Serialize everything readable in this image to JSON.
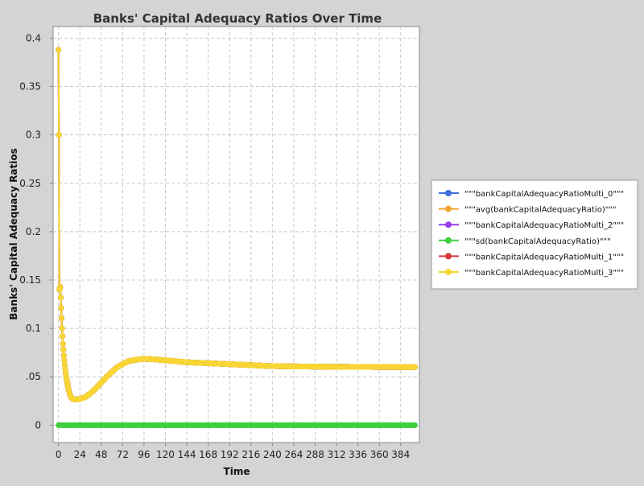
{
  "chart_data": {
    "type": "line",
    "title": "Banks' Capital Adequacy Ratios Over Time",
    "xlabel": "Time",
    "ylabel": "Banks' Capital Adequacy Ratios",
    "xlim": [
      -6,
      405
    ],
    "ylim": [
      -0.018,
      0.412
    ],
    "x_ticks": [
      0,
      24,
      48,
      72,
      96,
      120,
      144,
      168,
      192,
      216,
      240,
      264,
      288,
      312,
      336,
      360,
      384
    ],
    "y_ticks": [
      {
        "value": 0,
        "label": "0"
      },
      {
        "value": 0.05,
        "label": ".05"
      },
      {
        "value": 0.1,
        "label": "0.1"
      },
      {
        "value": 0.15,
        "label": "0.15"
      },
      {
        "value": 0.2,
        "label": "0.2"
      },
      {
        "value": 0.25,
        "label": "0.25"
      },
      {
        "value": 0.3,
        "label": "0.3"
      },
      {
        "value": 0.35,
        "label": "0.35"
      },
      {
        "value": 0.4,
        "label": "0.4"
      }
    ],
    "grid": true,
    "legend_position": "right",
    "series": [
      {
        "name": "\"\"\"bankCapitalAdequacyRatioMulti_0\"\"\"",
        "color": "#3d6fe0",
        "shape": "flat",
        "values": [
          [
            0,
            0.388
          ],
          [
            0.5,
            0.3
          ],
          [
            1,
            0.14
          ],
          [
            2,
            0.143
          ],
          [
            3,
            0.121
          ],
          [
            4,
            0.1
          ],
          [
            5,
            0.084
          ],
          [
            6,
            0.072
          ],
          [
            7,
            0.062
          ],
          [
            8,
            0.054
          ],
          [
            9,
            0.048
          ],
          [
            10,
            0.043
          ],
          [
            11,
            0.038
          ],
          [
            12,
            0.034
          ],
          [
            13,
            0.031
          ],
          [
            14,
            0.029
          ],
          [
            16,
            0.027
          ],
          [
            20,
            0.0265
          ],
          [
            24,
            0.027
          ],
          [
            30,
            0.029
          ],
          [
            36,
            0.033
          ],
          [
            42,
            0.038
          ],
          [
            48,
            0.044
          ],
          [
            54,
            0.05
          ],
          [
            60,
            0.055
          ],
          [
            66,
            0.06
          ],
          [
            72,
            0.063
          ],
          [
            78,
            0.066
          ],
          [
            84,
            0.067
          ],
          [
            90,
            0.068
          ],
          [
            96,
            0.0685
          ],
          [
            108,
            0.068
          ],
          [
            120,
            0.067
          ],
          [
            144,
            0.065
          ],
          [
            168,
            0.064
          ],
          [
            192,
            0.063
          ],
          [
            216,
            0.062
          ],
          [
            240,
            0.061
          ],
          [
            264,
            0.0607
          ],
          [
            288,
            0.0605
          ],
          [
            312,
            0.0603
          ],
          [
            336,
            0.0602
          ],
          [
            360,
            0.0601
          ],
          [
            384,
            0.06
          ],
          [
            400,
            0.06
          ]
        ]
      },
      {
        "name": "\"\"\"avg(bankCapitalAdequacyRatio)\"\"\"",
        "color": "#f2a531",
        "shape": "flat",
        "values": [
          [
            0,
            0.388
          ],
          [
            0.5,
            0.3
          ],
          [
            1,
            0.14
          ],
          [
            2,
            0.143
          ],
          [
            3,
            0.121
          ],
          [
            4,
            0.1
          ],
          [
            5,
            0.084
          ],
          [
            6,
            0.072
          ],
          [
            7,
            0.062
          ],
          [
            8,
            0.054
          ],
          [
            9,
            0.048
          ],
          [
            10,
            0.043
          ],
          [
            11,
            0.038
          ],
          [
            12,
            0.034
          ],
          [
            13,
            0.031
          ],
          [
            14,
            0.029
          ],
          [
            16,
            0.027
          ],
          [
            20,
            0.0265
          ],
          [
            24,
            0.027
          ],
          [
            30,
            0.029
          ],
          [
            36,
            0.033
          ],
          [
            42,
            0.038
          ],
          [
            48,
            0.044
          ],
          [
            54,
            0.05
          ],
          [
            60,
            0.055
          ],
          [
            66,
            0.06
          ],
          [
            72,
            0.063
          ],
          [
            78,
            0.066
          ],
          [
            84,
            0.067
          ],
          [
            90,
            0.068
          ],
          [
            96,
            0.0685
          ],
          [
            108,
            0.068
          ],
          [
            120,
            0.067
          ],
          [
            144,
            0.065
          ],
          [
            168,
            0.064
          ],
          [
            192,
            0.063
          ],
          [
            216,
            0.062
          ],
          [
            240,
            0.061
          ],
          [
            264,
            0.0607
          ],
          [
            288,
            0.0605
          ],
          [
            312,
            0.0603
          ],
          [
            336,
            0.0602
          ],
          [
            360,
            0.0601
          ],
          [
            384,
            0.06
          ],
          [
            400,
            0.06
          ]
        ]
      },
      {
        "name": "\"\"\"bankCapitalAdequacyRatioMulti_2\"\"\"",
        "color": "#9a3fe8",
        "shape": "flat",
        "values": [
          [
            0,
            0.388
          ],
          [
            0.5,
            0.3
          ],
          [
            1,
            0.14
          ],
          [
            2,
            0.143
          ],
          [
            3,
            0.121
          ],
          [
            4,
            0.1
          ],
          [
            5,
            0.084
          ],
          [
            6,
            0.072
          ],
          [
            7,
            0.062
          ],
          [
            8,
            0.054
          ],
          [
            9,
            0.048
          ],
          [
            10,
            0.043
          ],
          [
            11,
            0.038
          ],
          [
            12,
            0.034
          ],
          [
            13,
            0.031
          ],
          [
            14,
            0.029
          ],
          [
            16,
            0.027
          ],
          [
            20,
            0.0265
          ],
          [
            24,
            0.027
          ],
          [
            30,
            0.029
          ],
          [
            36,
            0.033
          ],
          [
            42,
            0.038
          ],
          [
            48,
            0.044
          ],
          [
            54,
            0.05
          ],
          [
            60,
            0.055
          ],
          [
            66,
            0.06
          ],
          [
            72,
            0.063
          ],
          [
            78,
            0.066
          ],
          [
            84,
            0.067
          ],
          [
            90,
            0.068
          ],
          [
            96,
            0.0685
          ],
          [
            108,
            0.068
          ],
          [
            120,
            0.067
          ],
          [
            144,
            0.065
          ],
          [
            168,
            0.064
          ],
          [
            192,
            0.063
          ],
          [
            216,
            0.062
          ],
          [
            240,
            0.061
          ],
          [
            264,
            0.0607
          ],
          [
            288,
            0.0605
          ],
          [
            312,
            0.0603
          ],
          [
            336,
            0.0602
          ],
          [
            360,
            0.0601
          ],
          [
            384,
            0.06
          ],
          [
            400,
            0.06
          ]
        ]
      },
      {
        "name": "\"\"\"sd(bankCapitalAdequacyRatio)\"\"\"",
        "color": "#3fcf3f",
        "shape": "constant",
        "values": [
          [
            0,
            0
          ],
          [
            400,
            0
          ]
        ]
      },
      {
        "name": "\"\"\"bankCapitalAdequacyRatioMulti_1\"\"\"",
        "color": "#d63a3a",
        "shape": "flat",
        "values": [
          [
            0,
            0.388
          ],
          [
            0.5,
            0.3
          ],
          [
            1,
            0.14
          ],
          [
            2,
            0.143
          ],
          [
            3,
            0.121
          ],
          [
            4,
            0.1
          ],
          [
            5,
            0.084
          ],
          [
            6,
            0.072
          ],
          [
            7,
            0.062
          ],
          [
            8,
            0.054
          ],
          [
            9,
            0.048
          ],
          [
            10,
            0.043
          ],
          [
            11,
            0.038
          ],
          [
            12,
            0.034
          ],
          [
            13,
            0.031
          ],
          [
            14,
            0.029
          ],
          [
            16,
            0.027
          ],
          [
            20,
            0.0265
          ],
          [
            24,
            0.027
          ],
          [
            30,
            0.029
          ],
          [
            36,
            0.033
          ],
          [
            42,
            0.038
          ],
          [
            48,
            0.044
          ],
          [
            54,
            0.05
          ],
          [
            60,
            0.055
          ],
          [
            66,
            0.06
          ],
          [
            72,
            0.063
          ],
          [
            78,
            0.066
          ],
          [
            84,
            0.067
          ],
          [
            90,
            0.068
          ],
          [
            96,
            0.0685
          ],
          [
            108,
            0.068
          ],
          [
            120,
            0.067
          ],
          [
            144,
            0.065
          ],
          [
            168,
            0.064
          ],
          [
            192,
            0.063
          ],
          [
            216,
            0.062
          ],
          [
            240,
            0.061
          ],
          [
            264,
            0.0607
          ],
          [
            288,
            0.0605
          ],
          [
            312,
            0.0603
          ],
          [
            336,
            0.0602
          ],
          [
            360,
            0.0601
          ],
          [
            384,
            0.06
          ],
          [
            400,
            0.06
          ]
        ]
      },
      {
        "name": "\"\"\"bankCapitalAdequacyRatioMulti_3\"\"\"",
        "color": "#f7d634",
        "shape": "flat",
        "values": [
          [
            0,
            0.388
          ],
          [
            0.5,
            0.3
          ],
          [
            1,
            0.14
          ],
          [
            2,
            0.143
          ],
          [
            3,
            0.121
          ],
          [
            4,
            0.1
          ],
          [
            5,
            0.084
          ],
          [
            6,
            0.072
          ],
          [
            7,
            0.062
          ],
          [
            8,
            0.054
          ],
          [
            9,
            0.048
          ],
          [
            10,
            0.043
          ],
          [
            11,
            0.038
          ],
          [
            12,
            0.034
          ],
          [
            13,
            0.031
          ],
          [
            14,
            0.029
          ],
          [
            16,
            0.027
          ],
          [
            20,
            0.0265
          ],
          [
            24,
            0.027
          ],
          [
            30,
            0.029
          ],
          [
            36,
            0.033
          ],
          [
            42,
            0.038
          ],
          [
            48,
            0.044
          ],
          [
            54,
            0.05
          ],
          [
            60,
            0.055
          ],
          [
            66,
            0.06
          ],
          [
            72,
            0.063
          ],
          [
            78,
            0.066
          ],
          [
            84,
            0.067
          ],
          [
            90,
            0.068
          ],
          [
            96,
            0.0685
          ],
          [
            108,
            0.068
          ],
          [
            120,
            0.067
          ],
          [
            144,
            0.065
          ],
          [
            168,
            0.064
          ],
          [
            192,
            0.063
          ],
          [
            216,
            0.062
          ],
          [
            240,
            0.061
          ],
          [
            264,
            0.0607
          ],
          [
            288,
            0.0605
          ],
          [
            312,
            0.0603
          ],
          [
            336,
            0.0602
          ],
          [
            360,
            0.0601
          ],
          [
            384,
            0.06
          ],
          [
            400,
            0.06
          ]
        ]
      }
    ]
  }
}
